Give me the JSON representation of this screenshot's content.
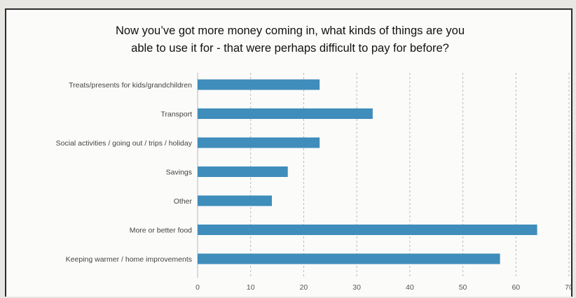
{
  "chart_data": {
    "type": "bar",
    "orientation": "horizontal",
    "title": "Now you’ve got more money coming in, what kinds of things are you able to use it for - that were perhaps difficult to pay for before?",
    "title_lines": [
      "Now you’ve got more money coming in, what kinds of things are you",
      "able to use it for - that were perhaps difficult to pay for before?"
    ],
    "categories": [
      "Treats/presents for kids/grandchildren",
      "Transport",
      "Social activities / going out / trips / holiday",
      "Savings",
      "Other",
      "More or better food",
      "Keeping warmer / home improvements"
    ],
    "values": [
      23,
      33,
      23,
      17,
      14,
      64,
      57
    ],
    "xlim": [
      0,
      70
    ],
    "xticks": [
      0,
      10,
      20,
      30,
      40,
      50,
      60,
      70
    ],
    "xlabel": "",
    "ylabel": "",
    "grid": true,
    "grid_style": "dashed vertical",
    "legend": "none",
    "bar_color": "#3f8dbb"
  }
}
